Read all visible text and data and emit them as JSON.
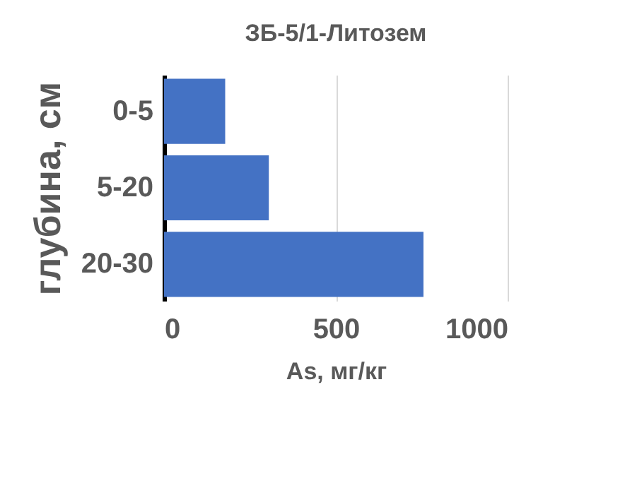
{
  "chart_data": {
    "type": "bar",
    "orientation": "horizontal",
    "title": "ЗБ-5/1-Литозем",
    "xlabel": "As, мг/кг",
    "ylabel": "глубина, см",
    "categories": [
      "0-5",
      "5-20",
      "20-30"
    ],
    "values": [
      178,
      305,
      755
    ],
    "color": "#4472c4",
    "xlim": [
      0,
      1000
    ],
    "xticks": [
      0,
      500,
      1000
    ],
    "grid": "x"
  }
}
